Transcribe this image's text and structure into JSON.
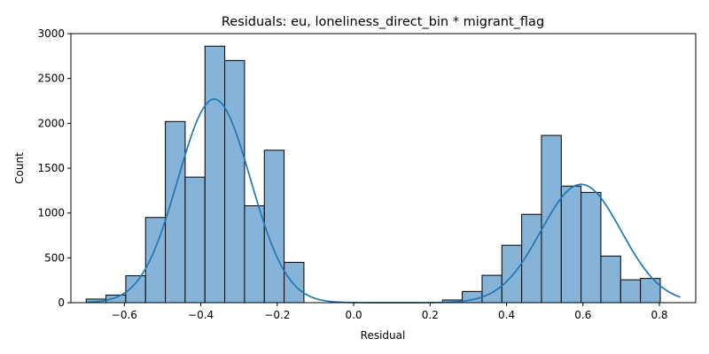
{
  "chart_data": {
    "type": "bar",
    "title": "Residuals: eu, loneliness_direct_bin * migrant_flag",
    "xlabel": "Residual",
    "ylabel": "Count",
    "xlim": [
      -0.74,
      0.895
    ],
    "ylim": [
      0,
      3000
    ],
    "xticks": [
      -0.6,
      -0.4,
      -0.2,
      0.0,
      0.2,
      0.4,
      0.6,
      0.8
    ],
    "xtick_labels": [
      "−0.6",
      "−0.4",
      "−0.2",
      "0.0",
      "0.2",
      "0.4",
      "0.6",
      "0.8"
    ],
    "yticks": [
      0,
      500,
      1000,
      1500,
      2000,
      2500,
      3000
    ],
    "ytick_labels": [
      "0",
      "500",
      "1000",
      "1500",
      "2000",
      "2500",
      "3000"
    ],
    "bin_start": -0.7,
    "bin_width": 0.0518,
    "values": [
      40,
      85,
      300,
      950,
      2020,
      1400,
      2860,
      2700,
      1080,
      1700,
      450,
      0,
      0,
      0,
      0,
      0,
      0,
      0,
      30,
      125,
      305,
      640,
      985,
      1865,
      1300,
      1230,
      520,
      255,
      270
    ],
    "bar_fill": "#86b4d8",
    "bar_edge": "#000000",
    "kde_color": "#1f77b4",
    "kde": {
      "components": [
        {
          "mean": -0.365,
          "sd": 0.095,
          "peak": 2270
        },
        {
          "mean": 0.595,
          "sd": 0.105,
          "peak": 1320
        }
      ],
      "range": [
        -0.7,
        0.855
      ]
    },
    "grid": false,
    "legend": "none"
  }
}
